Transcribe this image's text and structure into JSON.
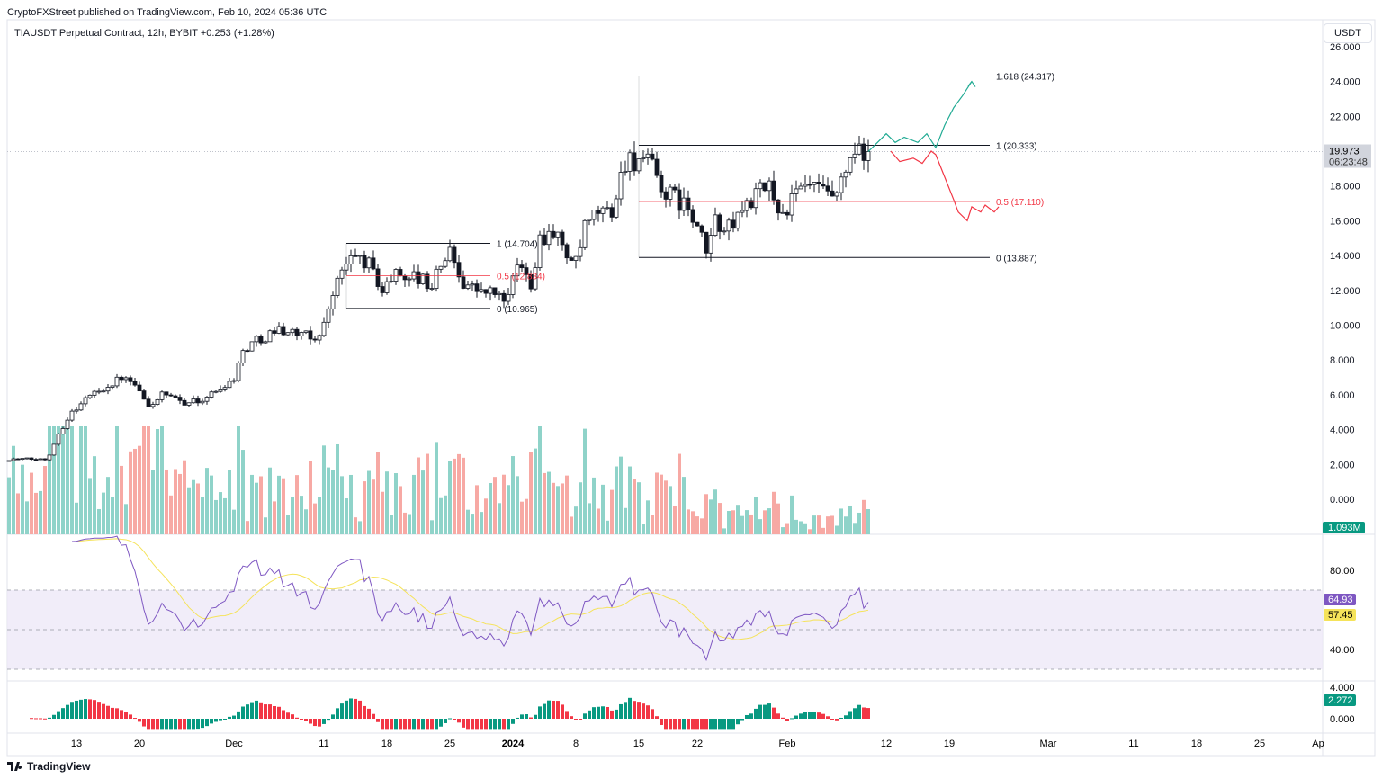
{
  "header": {
    "published": "CryptoFXStreet published on TradingView.com, Feb 10, 2024 05:36 UTC",
    "symbol_line": "TIAUSDT Perpetual Contract, 12h, BYBIT  +0.253 (+1.28%)"
  },
  "currency_button": "USDT",
  "footer": {
    "logo_text": "TradingView"
  },
  "chart_data": {
    "type": "candlestick",
    "title": "TIAUSDT Perpetual Contract, 12h, BYBIT",
    "interval": "12h",
    "price_axis": {
      "ticks": [
        "26.000",
        "24.000",
        "22.000",
        "18.000",
        "16.000",
        "14.000",
        "12.000",
        "10.000",
        "8.000",
        "6.000",
        "4.000",
        "2.000",
        "0.000"
      ],
      "tick_values": [
        26,
        24,
        22,
        18,
        16,
        14,
        12,
        10,
        8,
        6,
        4,
        2,
        0
      ],
      "range": [
        0,
        26.5
      ]
    },
    "last_price": {
      "value": "19.973",
      "countdown": "06:23:48"
    },
    "price_path": [
      [
        0,
        2.3
      ],
      [
        8,
        2.3
      ],
      [
        9,
        2.6
      ],
      [
        11,
        3.8
      ],
      [
        14,
        5
      ],
      [
        16,
        5.5
      ],
      [
        18,
        6
      ],
      [
        22,
        6.5
      ],
      [
        25,
        7
      ],
      [
        28,
        6.5
      ],
      [
        31,
        5.3
      ],
      [
        34,
        6
      ],
      [
        38,
        5.6
      ],
      [
        42,
        5.6
      ],
      [
        46,
        6.2
      ],
      [
        50,
        7
      ],
      [
        52,
        8.5
      ],
      [
        54,
        9
      ],
      [
        58,
        9.5
      ],
      [
        60,
        9.8
      ],
      [
        64,
        9.5
      ],
      [
        68,
        9.2
      ],
      [
        70,
        10
      ],
      [
        72,
        12
      ],
      [
        75,
        13.5
      ],
      [
        77,
        14
      ],
      [
        80,
        13.5
      ],
      [
        83,
        12
      ],
      [
        86,
        13
      ],
      [
        90,
        12.8
      ],
      [
        94,
        12.3
      ],
      [
        96,
        13.5
      ],
      [
        98,
        14.2
      ],
      [
        101,
        12.5
      ],
      [
        104,
        12
      ],
      [
        108,
        11.8
      ],
      [
        111,
        11.5
      ],
      [
        113,
        13.5
      ],
      [
        116,
        12.5
      ],
      [
        118,
        15
      ],
      [
        121,
        15.5
      ],
      [
        124,
        14
      ],
      [
        126,
        13.5
      ],
      [
        128,
        15.5
      ],
      [
        131,
        16.5
      ],
      [
        134,
        16.5
      ],
      [
        137,
        19.5
      ],
      [
        140,
        19.5
      ],
      [
        143,
        19
      ],
      [
        146,
        17.5
      ],
      [
        150,
        17
      ],
      [
        153,
        15.5
      ],
      [
        155,
        14.2
      ],
      [
        157,
        16
      ],
      [
        160,
        15.5
      ],
      [
        164,
        17
      ],
      [
        169,
        18
      ],
      [
        172,
        16.3
      ],
      [
        175,
        17.5
      ],
      [
        178,
        18
      ],
      [
        181,
        17.5
      ],
      [
        184,
        17.2
      ],
      [
        187,
        19.5
      ],
      [
        191,
        19.973
      ]
    ],
    "volume": {
      "last_label": "1.093M"
    },
    "rsi": {
      "ticks": [
        "80.00",
        "40.00"
      ],
      "tick_values": [
        80,
        40
      ],
      "bands": [
        70,
        50,
        30
      ],
      "value_label": "64.93",
      "ma_label": "57.45",
      "period": 14
    },
    "macd": {
      "ticks": [
        "4.000",
        "0.000"
      ],
      "tick_values": [
        4,
        0
      ],
      "value_label": "2.272"
    },
    "fib_left": {
      "levels": [
        {
          "label": "1 (14.704)",
          "value": 14.704,
          "color": "#131722"
        },
        {
          "label": "0.5 (12.834)",
          "value": 12.834,
          "color": "#f23645"
        },
        {
          "label": "0 (10.965)",
          "value": 10.965,
          "color": "#131722"
        }
      ],
      "from_index": 75,
      "to_index": 107
    },
    "fib_right": {
      "levels": [
        {
          "label": "1.618 (24.317)",
          "value": 24.317,
          "color": "#131722"
        },
        {
          "label": "1 (20.333)",
          "value": 20.333,
          "color": "#131722"
        },
        {
          "label": "0.5 (17.110)",
          "value": 17.11,
          "color": "#f23645"
        },
        {
          "label": "0 (13.887)",
          "value": 13.887,
          "color": "#131722"
        }
      ],
      "from_index": 140,
      "to_index": 218
    },
    "projection_bull": [
      [
        191,
        19.97
      ],
      [
        195,
        21
      ],
      [
        197,
        20.5
      ],
      [
        199,
        20.8
      ],
      [
        202,
        20.5
      ],
      [
        204,
        21
      ],
      [
        206,
        20.2
      ],
      [
        208,
        21.5
      ],
      [
        210,
        22.5
      ],
      [
        212,
        23.2
      ],
      [
        214,
        24
      ]
    ],
    "projection_bear": [
      [
        196,
        20
      ],
      [
        198,
        19.4
      ],
      [
        201,
        19.6
      ],
      [
        203,
        19.3
      ],
      [
        205,
        20
      ],
      [
        206,
        19.8
      ],
      [
        208,
        18.5
      ],
      [
        210,
        17.2
      ],
      [
        211,
        16.5
      ],
      [
        213,
        16
      ],
      [
        214,
        16.8
      ],
      [
        216,
        16.5
      ],
      [
        217,
        16.9
      ],
      [
        219,
        16.5
      ],
      [
        220,
        16.8
      ]
    ],
    "x_axis": {
      "ticks": [
        {
          "label": "13",
          "i": 15
        },
        {
          "label": "20",
          "i": 29
        },
        {
          "label": "Dec",
          "i": 50
        },
        {
          "label": "11",
          "i": 70
        },
        {
          "label": "18",
          "i": 84
        },
        {
          "label": "25",
          "i": 98
        },
        {
          "label": "2024",
          "i": 112,
          "bold": true
        },
        {
          "label": "8",
          "i": 126
        },
        {
          "label": "15",
          "i": 140
        },
        {
          "label": "22",
          "i": 153
        },
        {
          "label": "Feb",
          "i": 173
        },
        {
          "label": "12",
          "i": 195
        },
        {
          "label": "19",
          "i": 209
        },
        {
          "label": "Mar",
          "i": 231
        },
        {
          "label": "11",
          "i": 250
        },
        {
          "label": "18",
          "i": 264
        },
        {
          "label": "25",
          "i": 278
        },
        {
          "label": "Ap",
          "i": 291
        }
      ]
    },
    "colors": {
      "up_volume": "#8fd3c9",
      "down_volume": "#f7a9a4",
      "rsi": "#7e57c2",
      "rsi_ma": "#f5e35a",
      "macd_up": "#089981",
      "macd_down": "#f23645",
      "bull": "#22ab94",
      "bear": "#f23645",
      "last_price_bg": "#d1d4dc",
      "badge_green": "#089981"
    }
  }
}
